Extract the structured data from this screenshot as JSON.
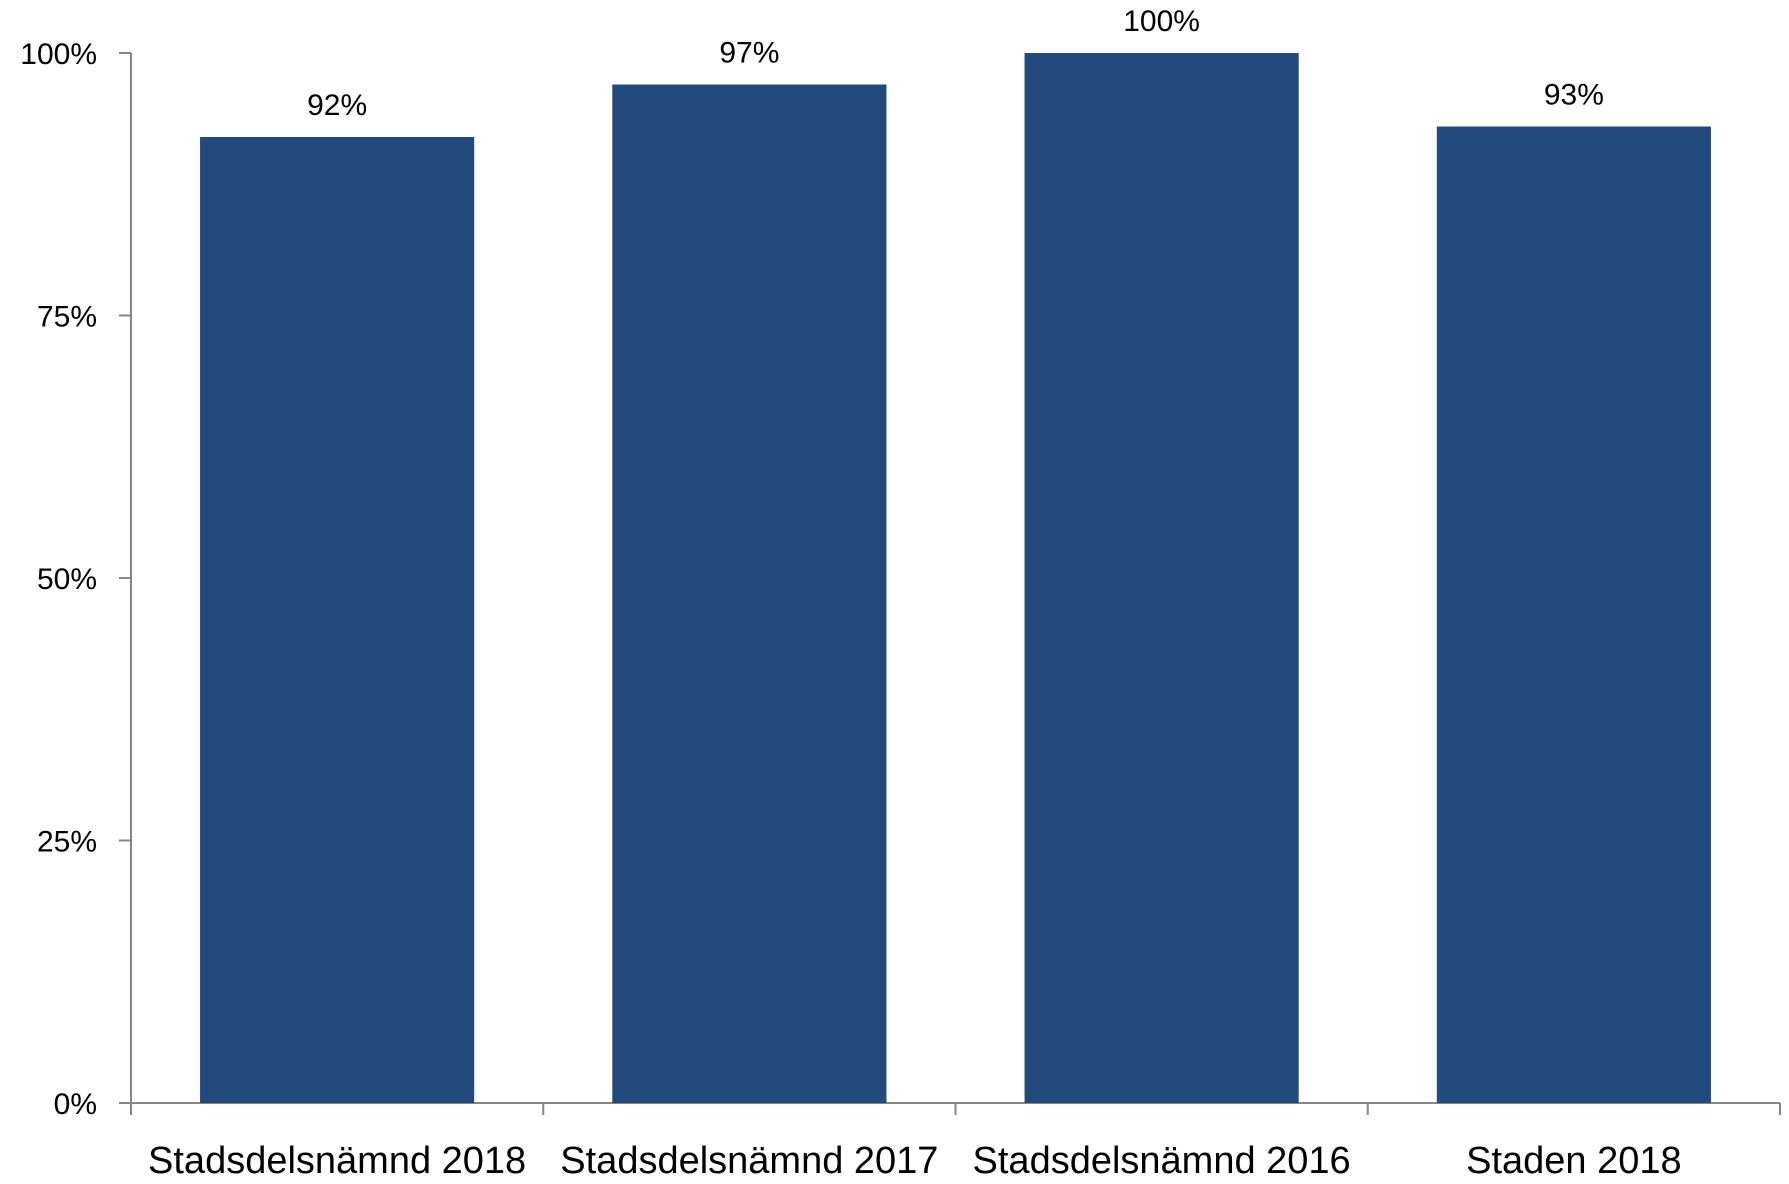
{
  "chart_data": {
    "type": "bar",
    "title": "",
    "xlabel": "",
    "ylabel": "",
    "categories": [
      "Stadsdelsnämnd 2018",
      "Stadsdelsnämnd 2017",
      "Stadsdelsnämnd 2016",
      "Staden 2018"
    ],
    "values": [
      92,
      97,
      100,
      93
    ],
    "data_labels": [
      "92%",
      "97%",
      "100%",
      "93%"
    ],
    "ylim": [
      0,
      100
    ],
    "yticks": [
      0,
      25,
      50,
      75,
      100
    ],
    "ytick_labels": [
      "0%",
      "25%",
      "50%",
      "75%",
      "100%"
    ],
    "grid": false,
    "legend": "none",
    "bar_color": "#224A7D",
    "axis_color": "#868686"
  }
}
